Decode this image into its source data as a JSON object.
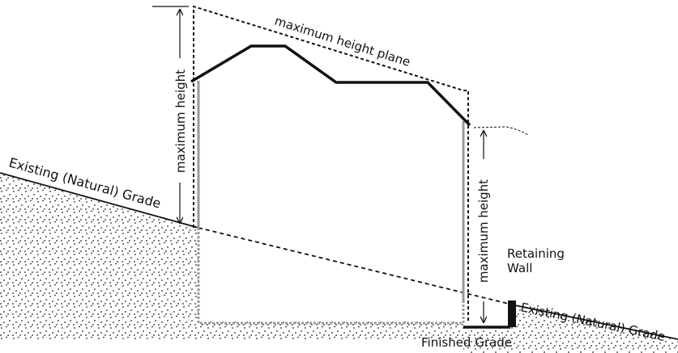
{
  "labels": {
    "existing_grade_left": "Existing (Natural) Grade",
    "existing_grade_right": "Existing (Natural) Grade",
    "max_height_plane": "maximum height plane",
    "max_height_left": "maximum height",
    "max_height_right": "maximum height",
    "retaining_wall_line1": "Retaining",
    "retaining_wall_line2": "Wall",
    "finished_grade": "Finished Grade"
  },
  "colors": {
    "line": "#111111",
    "wall": "#999999",
    "dots": "#222222"
  }
}
